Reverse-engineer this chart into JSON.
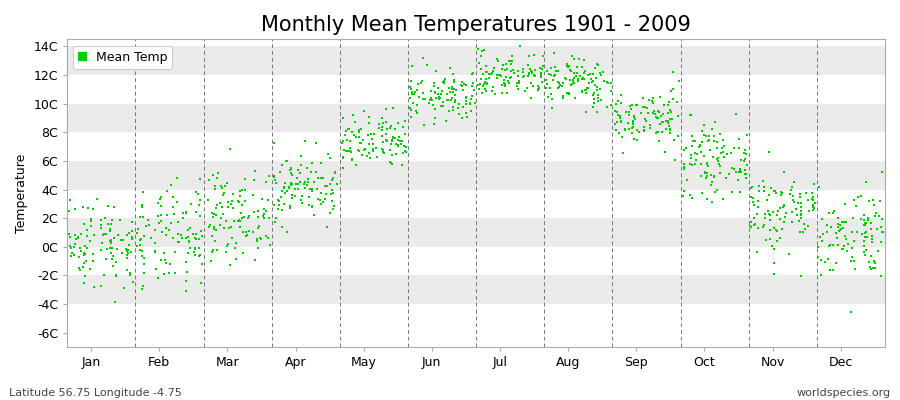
{
  "title": "Monthly Mean Temperatures 1901 - 2009",
  "ylabel": "Temperature",
  "yticks": [
    -6,
    -4,
    -2,
    0,
    2,
    4,
    6,
    8,
    10,
    12,
    14
  ],
  "ytick_labels": [
    "-6C",
    "-4C",
    "-2C",
    "0C",
    "2C",
    "4C",
    "6C",
    "8C",
    "10C",
    "12C",
    "14C"
  ],
  "ylim": [
    -7,
    14.5
  ],
  "months": [
    "Jan",
    "Feb",
    "Mar",
    "Apr",
    "May",
    "Jun",
    "Jul",
    "Aug",
    "Sep",
    "Oct",
    "Nov",
    "Dec"
  ],
  "monthly_means": [
    0.3,
    0.5,
    2.2,
    4.2,
    7.2,
    10.5,
    12.0,
    11.5,
    9.0,
    6.0,
    2.5,
    1.0
  ],
  "monthly_stds": [
    1.6,
    1.8,
    1.5,
    1.2,
    1.0,
    0.9,
    0.8,
    0.9,
    1.0,
    1.2,
    1.5,
    1.6
  ],
  "n_years": 109,
  "dot_color": "#00CC00",
  "dot_size": 3,
  "background_color": "#FFFFFF",
  "band_color": "#EBEBEB",
  "grid_color": "#777777",
  "legend_label": "Mean Temp",
  "footer_left": "Latitude 56.75 Longitude -4.75",
  "footer_right": "worldspecies.org",
  "title_fontsize": 15,
  "label_fontsize": 9,
  "footer_fontsize": 8
}
